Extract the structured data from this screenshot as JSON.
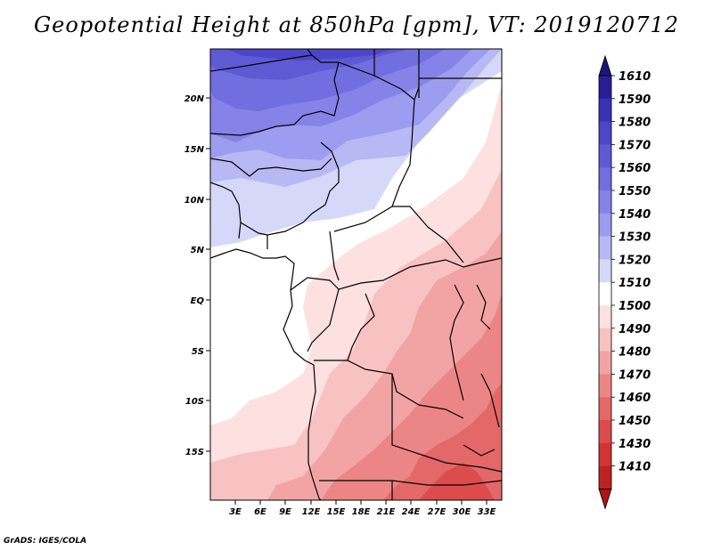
{
  "title": "Geopotential Height at 850hPa [gpm], VT: 2019120712",
  "credit": "GrADS: IGES/COLA",
  "map": {
    "lat_ticks": [
      "20N",
      "15N",
      "10N",
      "5N",
      "EQ",
      "5S",
      "10S",
      "15S"
    ],
    "lon_ticks": [
      "3E",
      "6E",
      "9E",
      "12E",
      "15E",
      "18E",
      "21E",
      "24E",
      "27E",
      "30E",
      "33E"
    ]
  },
  "colorbar": {
    "labels": [
      "1610",
      "1590",
      "1580",
      "1570",
      "1560",
      "1550",
      "1540",
      "1530",
      "1520",
      "1510",
      "1500",
      "1490",
      "1480",
      "1470",
      "1460",
      "1450",
      "1430",
      "1410"
    ],
    "colors": [
      "#2a1e96",
      "#3a32b4",
      "#4c46c8",
      "#5e5ad4",
      "#716ee0",
      "#8583e8",
      "#9c9cf0",
      "#b8b8f4",
      "#d6d8fa",
      "#ffffff",
      "#fde0e0",
      "#f8c2c2",
      "#f2a4a4",
      "#ec8686",
      "#e46868",
      "#dc4c4c",
      "#d23434",
      "#bc2222"
    ],
    "top_arrow_color": "#1e1478",
    "bottom_arrow_color": "#a81818"
  }
}
